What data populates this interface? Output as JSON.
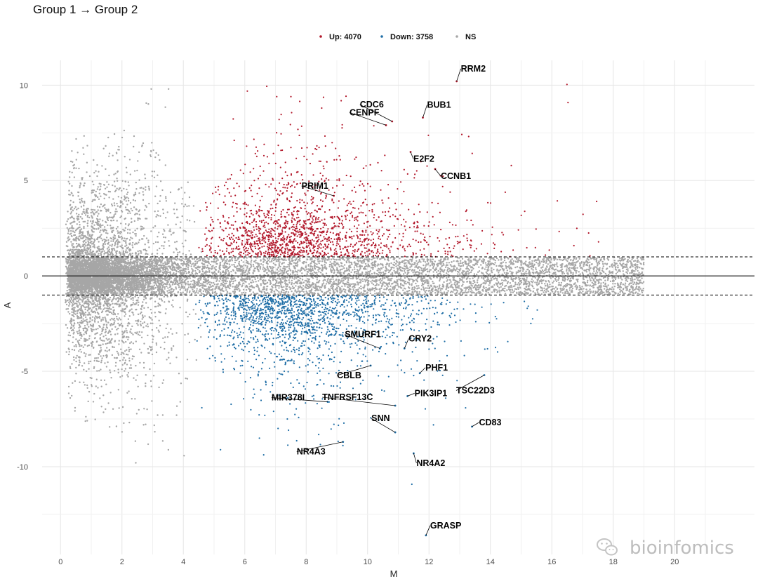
{
  "chart_data": {
    "type": "scatter",
    "title": "Group 1 → Group 2",
    "xlabel": "M",
    "ylabel": "A",
    "xlim": [
      -0.6,
      22.6
    ],
    "ylim": [
      -14.6,
      11.3
    ],
    "x_ticks": [
      0,
      2,
      4,
      6,
      8,
      10,
      12,
      14,
      16,
      18,
      20
    ],
    "y_ticks": [
      -10,
      -5,
      0,
      5,
      10
    ],
    "threshold_lines": [
      1,
      -1
    ],
    "reference_line": 0,
    "legend": {
      "position": "top",
      "entries": [
        {
          "label": "Up: 4070",
          "color": "#b2182b"
        },
        {
          "label": "Down: 3758",
          "color": "#1f6ea6"
        },
        {
          "label": "NS",
          "color": "#a6a6a6"
        }
      ]
    },
    "series_counts": {
      "up": 4070,
      "down": 3758
    },
    "colors": {
      "up": "#b2182b",
      "down": "#1f6ea6",
      "ns": "#a6a6a6"
    },
    "grid": true,
    "labeled_genes": [
      {
        "name": "RRM2",
        "x": 12.9,
        "y": 10.2
      },
      {
        "name": "CDC6",
        "x": 10.8,
        "y": 8.1
      },
      {
        "name": "CENPF",
        "x": 10.6,
        "y": 7.9
      },
      {
        "name": "BUB1",
        "x": 11.8,
        "y": 8.3
      },
      {
        "name": "E2F2",
        "x": 11.4,
        "y": 6.5
      },
      {
        "name": "CCNB1",
        "x": 12.2,
        "y": 5.6
      },
      {
        "name": "PRIM1",
        "x": 8.9,
        "y": 4.2
      },
      {
        "name": "SMURF1",
        "x": 10.4,
        "y": -3.8
      },
      {
        "name": "CRY2",
        "x": 11.2,
        "y": -3.8
      },
      {
        "name": "PHF1",
        "x": 11.7,
        "y": -5.1
      },
      {
        "name": "CBLB",
        "x": 10.1,
        "y": -4.7
      },
      {
        "name": "PIK3IP1",
        "x": 11.3,
        "y": -6.3
      },
      {
        "name": "TSC22D3",
        "x": 13.8,
        "y": -5.2
      },
      {
        "name": "MIR378I",
        "x": 8.7,
        "y": -6.6
      },
      {
        "name": "TNFRSF13C",
        "x": 10.9,
        "y": -6.8
      },
      {
        "name": "CD83",
        "x": 13.4,
        "y": -7.9
      },
      {
        "name": "SNN",
        "x": 10.9,
        "y": -8.2
      },
      {
        "name": "NR4A3",
        "x": 9.2,
        "y": -8.7
      },
      {
        "name": "NR4A2",
        "x": 11.5,
        "y": -9.3
      },
      {
        "name": "GRASP",
        "x": 11.9,
        "y": -13.6
      }
    ]
  },
  "watermark": {
    "text": "bioinfomics",
    "icon": "wechat-icon"
  }
}
